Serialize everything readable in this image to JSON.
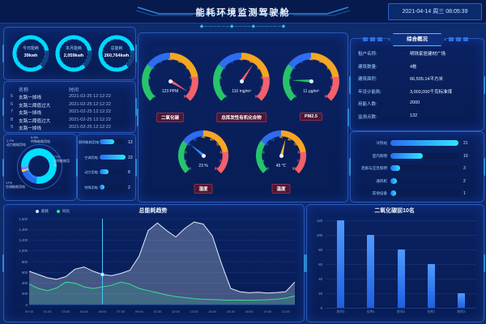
{
  "header": {
    "title": "能耗环境监测驾驶舱",
    "datetime": "2021-04-14 周三 08:05:39",
    "divider_decor": "◆──────◆────◆──────◆"
  },
  "stats": {
    "items": [
      {
        "label": "今日能耗",
        "value": "39kwh"
      },
      {
        "label": "本月能耗",
        "value": "2,059kwh"
      },
      {
        "label": "总能耗",
        "value": "260,764kwh"
      }
    ]
  },
  "alarms": {
    "col_name": "名称",
    "col_time": "时间",
    "rows": [
      {
        "no": "5",
        "name": "支路一掉线",
        "time": "2021-02-25 12:12:22"
      },
      {
        "no": "6",
        "name": "支路二阈值过大",
        "time": "2021-02-25 12:12:22"
      },
      {
        "no": "7",
        "name": "支路一掉线",
        "time": "2021-02-25 12:12:22"
      },
      {
        "no": "8",
        "name": "支路二阈值过大",
        "time": "2021-02-25 12:12:22"
      },
      {
        "no": "9",
        "name": "支路一掉线",
        "time": "2021-02-25 12:12:22"
      }
    ]
  },
  "overview": {
    "title": "综合概况",
    "rows": [
      {
        "label": "租户名称:",
        "value": "明珠家居建材广场"
      },
      {
        "label": "建筑数量:",
        "value": "4栋"
      },
      {
        "label": "建筑面积:",
        "value": "66,505.14平方米"
      },
      {
        "label": "年设计能耗:",
        "value": "3,000,000千克标准煤"
      },
      {
        "label": "用能人数:",
        "value": "2000"
      },
      {
        "label": "监测点数:",
        "value": "132"
      }
    ]
  },
  "colors": {
    "accent_cyan": "#00d8ff",
    "bar_gradient_start": "#2a6df4",
    "bar_gradient_end": "#2ee6ff",
    "gauge_green": "#27c46b",
    "gauge_blue": "#2f6df0",
    "gauge_orange": "#f5a623",
    "gauge_red": "#f4606c",
    "co2_bar_blue": "#2e7bf6"
  },
  "chart_data": [
    {
      "id": "energy_structure_pie",
      "type": "pie",
      "slices": [
        {
          "label": "照明能耗用电",
          "pct": "77%",
          "value": 77,
          "color": "#00e0ff"
        },
        {
          "label": "空调能耗用电",
          "pct": "17%",
          "value": 17,
          "color": "#2a6df4"
        },
        {
          "label": "动力能耗用电",
          "pct": "1.7%",
          "value": 1.7,
          "color": "#8f7bff"
        },
        {
          "label": "特殊能耗用电",
          "pct": "0.6%",
          "value": 0.6,
          "color": "#ffd24a"
        }
      ]
    },
    {
      "id": "energy_type_bars",
      "type": "bar",
      "orientation": "horizontal",
      "categories": [
        "照明能耗用电",
        "空调用电",
        "动力用电",
        "特殊用电"
      ],
      "values": [
        13,
        23,
        8,
        2
      ]
    },
    {
      "id": "env_gauges",
      "type": "gauge",
      "range": [
        0,
        80
      ],
      "ticks": [
        0,
        8,
        16,
        24,
        32,
        40,
        48,
        56,
        64,
        72,
        80
      ],
      "items": [
        {
          "label": "二氧化碳",
          "value_text": "123 PPM",
          "needle_value": 76,
          "needle_color": "#f4606c"
        },
        {
          "label": "总挥发性有机化合物",
          "value_text": "110 mg/m³",
          "needle_value": 50,
          "needle_color": "#f4606c"
        },
        {
          "label": "PM2.5",
          "value_text": "11 μg/m³",
          "needle_value": 14,
          "needle_color": "#27c46b"
        },
        {
          "label": "湿度",
          "value_text": "23 %",
          "needle_value": 25,
          "needle_color": "#2f8df5"
        },
        {
          "label": "温度",
          "value_text": "45 ℃",
          "needle_value": 44,
          "needle_color": "#f2b33d"
        }
      ]
    },
    {
      "id": "device_energy_bars",
      "type": "bar",
      "orientation": "horizontal",
      "categories": [
        "冷热站",
        "室内照明",
        "走廊与应急照明",
        "通风机",
        "其他设备"
      ],
      "values": [
        21,
        10,
        3,
        2,
        1
      ]
    },
    {
      "id": "trend",
      "type": "area",
      "title": "总能耗趋势",
      "legend": [
        "能耗",
        "同比"
      ],
      "legend_colors": [
        "#d7e3f4",
        "#35e08e"
      ],
      "ylim": [
        0,
        1600
      ],
      "yticks": [
        "0",
        "200",
        "400",
        "600",
        "800",
        "1,000",
        "1,200",
        "1,400",
        "1,600"
      ],
      "x": [
        "00:00",
        "00:45",
        "01:30",
        "02:15",
        "03:00",
        "03:45",
        "04:30",
        "05:15",
        "06:00",
        "06:45",
        "07:30",
        "08:15",
        "09:00",
        "09:45",
        "10:30",
        "11:15",
        "12:00",
        "12:45",
        "13:30",
        "14:15",
        "15:00",
        "15:45",
        "16:30",
        "17:15",
        "18:00",
        "18:45",
        "19:30",
        "20:15",
        "21:00",
        "21:45"
      ],
      "pointer_index": 8,
      "series": [
        {
          "name": "能耗",
          "color": "#e2ebf8",
          "values": [
            620,
            560,
            500,
            470,
            520,
            660,
            700,
            620,
            560,
            540,
            580,
            640,
            900,
            1380,
            1520,
            1380,
            1260,
            1420,
            1540,
            1500,
            1280,
            760,
            300,
            240,
            220,
            230,
            215,
            225,
            240,
            420
          ]
        },
        {
          "name": "同比",
          "color": "#35e08e",
          "values": [
            380,
            300,
            260,
            310,
            420,
            400,
            330,
            300,
            330,
            360,
            420,
            380,
            300,
            260,
            220,
            180,
            150,
            130,
            110,
            100,
            95,
            88,
            82,
            85,
            80,
            85,
            90,
            100,
            120,
            160
          ]
        }
      ]
    },
    {
      "id": "co2_top10",
      "type": "bar",
      "title": "二氧化碳前10名",
      "categories": [
        "房间1",
        "仓库1",
        "房间2",
        "仓库2",
        "房间3"
      ],
      "values": [
        120,
        100,
        80,
        60,
        20
      ],
      "ylim": [
        0,
        120
      ],
      "yticks": [
        0,
        20,
        40,
        60,
        80,
        100,
        120
      ]
    }
  ]
}
